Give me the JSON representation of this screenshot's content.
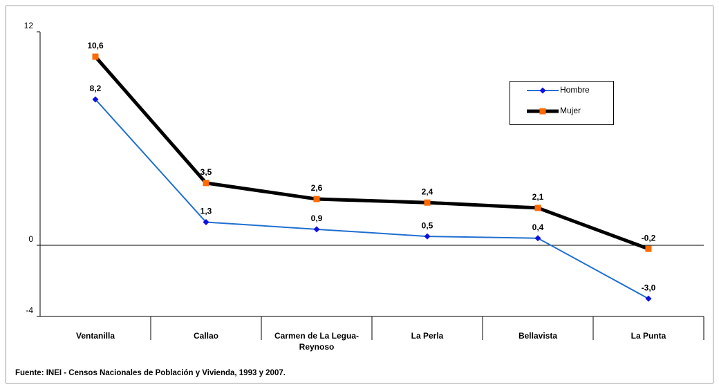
{
  "chart_data": {
    "type": "line",
    "categories": [
      "Ventanilla",
      "Callao",
      "Carmen de La Legua-Reynoso",
      "La Perla",
      "Bellavista",
      "La Punta"
    ],
    "series": [
      {
        "name": "Hombre",
        "color": "#1f6fd0",
        "marker_color": "#1010e0",
        "marker": "diamond",
        "line_width": 2,
        "values": [
          8.2,
          1.3,
          0.9,
          0.5,
          0.4,
          -3.0
        ],
        "value_labels": [
          "8,2",
          "1,3",
          "0,9",
          "0,5",
          "0,4",
          "-3,0"
        ]
      },
      {
        "name": "Mujer",
        "color": "#000000",
        "marker_color": "#ff6a00",
        "marker": "square",
        "line_width": 5,
        "values": [
          10.6,
          3.5,
          2.6,
          2.4,
          2.1,
          -0.2
        ],
        "value_labels": [
          "10,6",
          "3,5",
          "2,6",
          "2,4",
          "2,1",
          "-0,2"
        ]
      }
    ],
    "ylim": [
      -4,
      12
    ],
    "yticks": [
      -4,
      0,
      12
    ],
    "note": "Fuente: INEI - Censos Nacionales de Población y Vivienda, 1993 y 2007."
  }
}
